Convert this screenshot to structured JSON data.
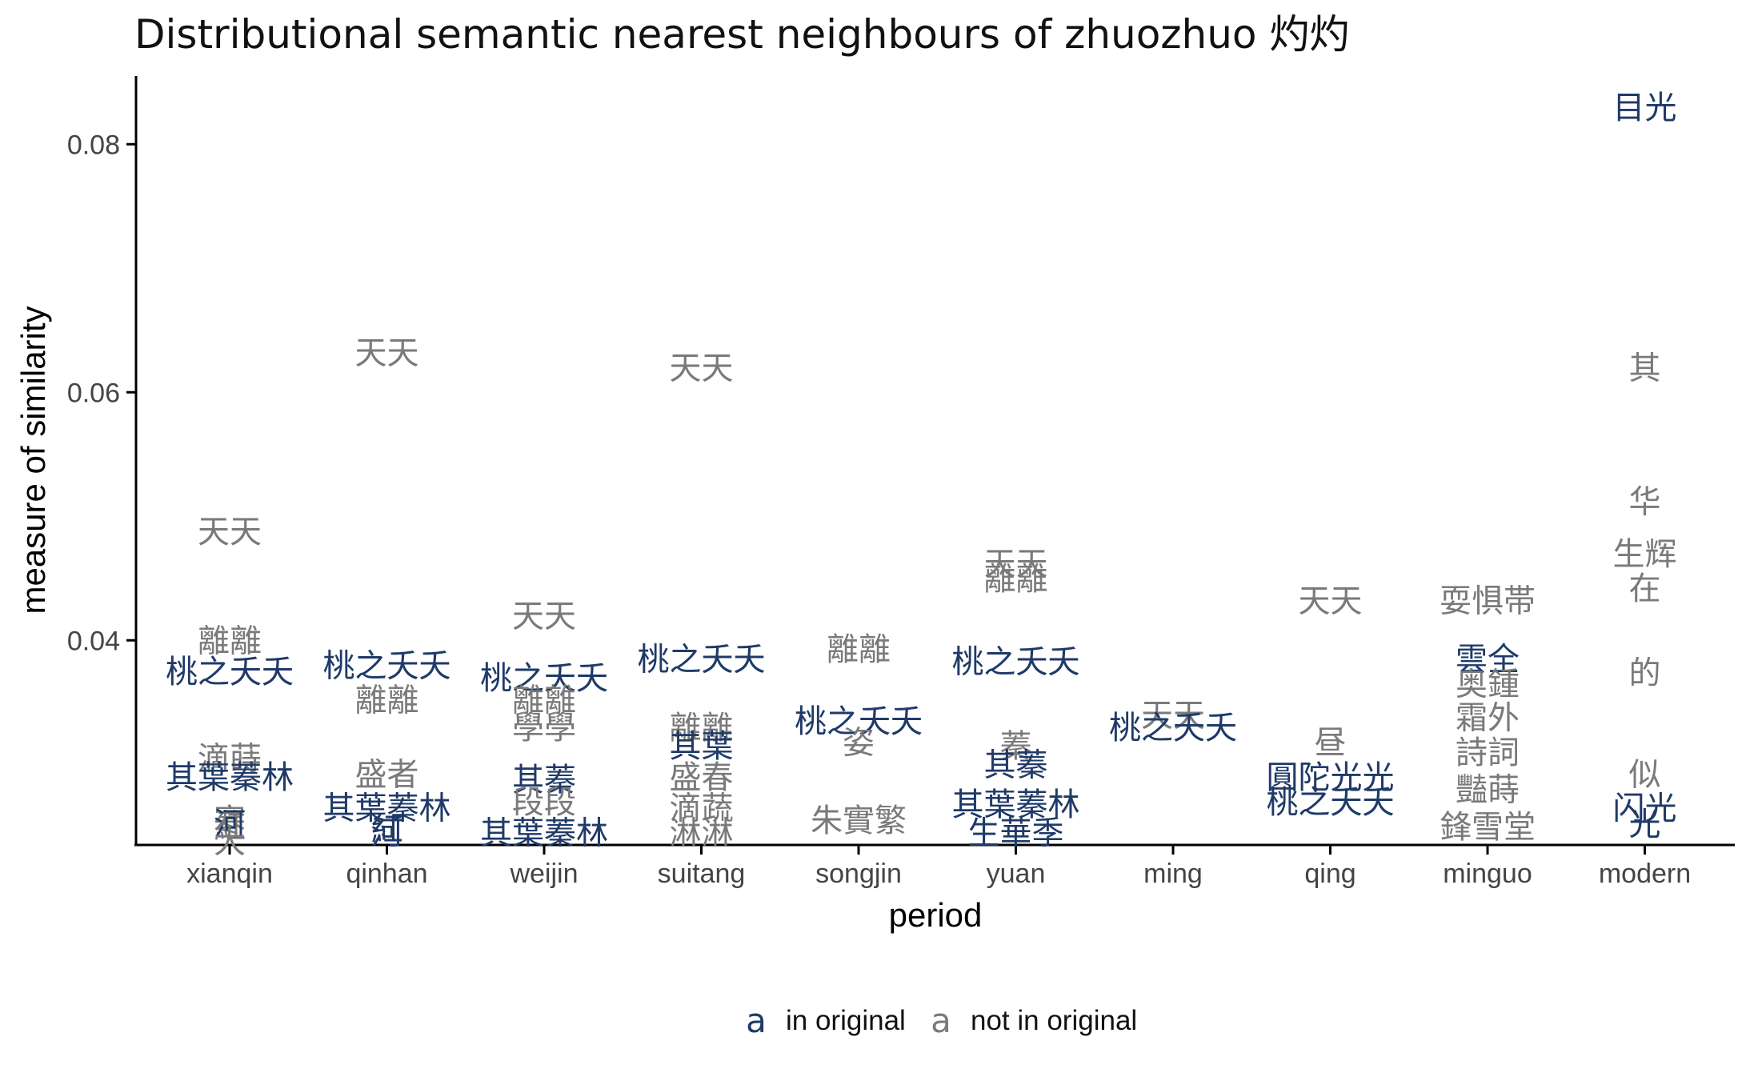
{
  "chart_data": {
    "type": "scatter",
    "title": "Distributional semantic nearest neighbours of zhuozhuo 灼灼",
    "xlabel": "period",
    "ylabel": "measure of similarity",
    "categories": [
      "xianqin",
      "qinhan",
      "weijin",
      "suitang",
      "songjin",
      "yuan",
      "ming",
      "qing",
      "minguo",
      "modern"
    ],
    "ylim": [
      0.0235,
      0.0855
    ],
    "yticks": [
      0.04,
      0.06,
      0.08
    ],
    "ytick_labels": [
      "0.04",
      "0.06",
      "0.08"
    ],
    "grid": false,
    "legend_position": "bottom",
    "legend_key_glyph": "a",
    "colors": {
      "in_original": "#1f3a68",
      "not_in_original": "#7a7a7a",
      "axis": "#000000"
    },
    "legend": [
      {
        "key": "in_original",
        "label": "in original"
      },
      {
        "key": "not_in_original",
        "label": "not in original"
      }
    ],
    "points": [
      {
        "period": "xianqin",
        "word": "天天",
        "y": 0.0488,
        "group": "not_in_original"
      },
      {
        "period": "xianqin",
        "word": "離離",
        "y": 0.04,
        "group": "not_in_original"
      },
      {
        "period": "xianqin",
        "word": "桃之夭夭",
        "y": 0.0375,
        "group": "in_original"
      },
      {
        "period": "xianqin",
        "word": "滴蒔",
        "y": 0.0305,
        "group": "not_in_original"
      },
      {
        "period": "xianqin",
        "word": "其葉蓁林",
        "y": 0.029,
        "group": "in_original"
      },
      {
        "period": "xianqin",
        "word": "寒",
        "y": 0.0255,
        "group": "not_in_original"
      },
      {
        "period": "xianqin",
        "word": "紅",
        "y": 0.025,
        "group": "not_in_original"
      },
      {
        "period": "xianqin",
        "word": "河",
        "y": 0.0252,
        "group": "in_original"
      },
      {
        "period": "xianqin",
        "word": "大",
        "y": 0.0238,
        "group": "not_in_original"
      },
      {
        "period": "qinhan",
        "word": "天天",
        "y": 0.0632,
        "group": "not_in_original"
      },
      {
        "period": "qinhan",
        "word": "桃之夭夭",
        "y": 0.038,
        "group": "in_original"
      },
      {
        "period": "qinhan",
        "word": "離離",
        "y": 0.0352,
        "group": "not_in_original"
      },
      {
        "period": "qinhan",
        "word": "盛者",
        "y": 0.0292,
        "group": "not_in_original"
      },
      {
        "period": "qinhan",
        "word": "其葉蓁林",
        "y": 0.0265,
        "group": "in_original"
      },
      {
        "period": "qinhan",
        "word": "紅",
        "y": 0.0248,
        "group": "in_original"
      },
      {
        "period": "qinhan",
        "word": "河",
        "y": 0.0245,
        "group": "in_original"
      },
      {
        "period": "weijin",
        "word": "天天",
        "y": 0.042,
        "group": "not_in_original"
      },
      {
        "period": "weijin",
        "word": "桃之夭夭",
        "y": 0.037,
        "group": "in_original"
      },
      {
        "period": "weijin",
        "word": "離離",
        "y": 0.0352,
        "group": "not_in_original"
      },
      {
        "period": "weijin",
        "word": "學學",
        "y": 0.033,
        "group": "not_in_original"
      },
      {
        "period": "weijin",
        "word": "其蓁",
        "y": 0.0288,
        "group": "in_original"
      },
      {
        "period": "weijin",
        "word": "段段",
        "y": 0.027,
        "group": "not_in_original"
      },
      {
        "period": "weijin",
        "word": "其葉蓁林",
        "y": 0.0245,
        "group": "in_original"
      },
      {
        "period": "suitang",
        "word": "天天",
        "y": 0.062,
        "group": "not_in_original"
      },
      {
        "period": "suitang",
        "word": "桃之夭夭",
        "y": 0.0385,
        "group": "in_original"
      },
      {
        "period": "suitang",
        "word": "離離",
        "y": 0.033,
        "group": "not_in_original"
      },
      {
        "period": "suitang",
        "word": "其葉",
        "y": 0.0315,
        "group": "in_original"
      },
      {
        "period": "suitang",
        "word": "盛春",
        "y": 0.029,
        "group": "not_in_original"
      },
      {
        "period": "suitang",
        "word": "滴蔬",
        "y": 0.0265,
        "group": "not_in_original"
      },
      {
        "period": "suitang",
        "word": "淋淋",
        "y": 0.0245,
        "group": "not_in_original"
      },
      {
        "period": "songjin",
        "word": "離離",
        "y": 0.0393,
        "group": "not_in_original"
      },
      {
        "period": "songjin",
        "word": "桃之夭夭",
        "y": 0.0335,
        "group": "in_original"
      },
      {
        "period": "songjin",
        "word": "姿",
        "y": 0.0318,
        "group": "not_in_original"
      },
      {
        "period": "songjin",
        "word": "朱實繁",
        "y": 0.0255,
        "group": "not_in_original"
      },
      {
        "period": "yuan",
        "word": "天天",
        "y": 0.0462,
        "group": "not_in_original"
      },
      {
        "period": "yuan",
        "word": "離離",
        "y": 0.045,
        "group": "not_in_original"
      },
      {
        "period": "yuan",
        "word": "桃之夭夭",
        "y": 0.0383,
        "group": "in_original"
      },
      {
        "period": "yuan",
        "word": "蓁",
        "y": 0.0315,
        "group": "not_in_original"
      },
      {
        "period": "yuan",
        "word": "其蓁",
        "y": 0.03,
        "group": "in_original"
      },
      {
        "period": "yuan",
        "word": "其葉蓁林",
        "y": 0.0268,
        "group": "in_original"
      },
      {
        "period": "yuan",
        "word": "生華季",
        "y": 0.0245,
        "group": "in_original"
      },
      {
        "period": "ming",
        "word": "天天",
        "y": 0.034,
        "group": "not_in_original"
      },
      {
        "period": "ming",
        "word": "桃之夭夭",
        "y": 0.033,
        "group": "in_original"
      },
      {
        "period": "qing",
        "word": "天天",
        "y": 0.0432,
        "group": "not_in_original"
      },
      {
        "period": "qing",
        "word": "昼",
        "y": 0.0318,
        "group": "not_in_original"
      },
      {
        "period": "qing",
        "word": "圓陀光光",
        "y": 0.029,
        "group": "in_original"
      },
      {
        "period": "qing",
        "word": "桃之夭夭",
        "y": 0.027,
        "group": "in_original"
      },
      {
        "period": "minguo",
        "word": "耍惧帯",
        "y": 0.0432,
        "group": "not_in_original"
      },
      {
        "period": "minguo",
        "word": "雲全",
        "y": 0.0385,
        "group": "in_original"
      },
      {
        "period": "minguo",
        "word": "奥鍾",
        "y": 0.0365,
        "group": "not_in_original"
      },
      {
        "period": "minguo",
        "word": "霜外",
        "y": 0.0338,
        "group": "not_in_original"
      },
      {
        "period": "minguo",
        "word": "詩詞",
        "y": 0.031,
        "group": "not_in_original"
      },
      {
        "period": "minguo",
        "word": "豔蒔",
        "y": 0.028,
        "group": "not_in_original"
      },
      {
        "period": "minguo",
        "word": "鋒雪堂",
        "y": 0.025,
        "group": "not_in_original"
      },
      {
        "period": "modern",
        "word": "目光",
        "y": 0.083,
        "group": "in_original"
      },
      {
        "period": "modern",
        "word": "其",
        "y": 0.062,
        "group": "not_in_original"
      },
      {
        "period": "modern",
        "word": "华",
        "y": 0.0512,
        "group": "not_in_original"
      },
      {
        "period": "modern",
        "word": "生辉",
        "y": 0.047,
        "group": "not_in_original"
      },
      {
        "period": "modern",
        "word": "在",
        "y": 0.0442,
        "group": "not_in_original"
      },
      {
        "period": "modern",
        "word": "的",
        "y": 0.0374,
        "group": "not_in_original"
      },
      {
        "period": "modern",
        "word": "似",
        "y": 0.0292,
        "group": "not_in_original"
      },
      {
        "period": "modern",
        "word": "闪光",
        "y": 0.0265,
        "group": "in_original"
      },
      {
        "period": "modern",
        "word": "光",
        "y": 0.0252,
        "group": "in_original"
      }
    ]
  }
}
